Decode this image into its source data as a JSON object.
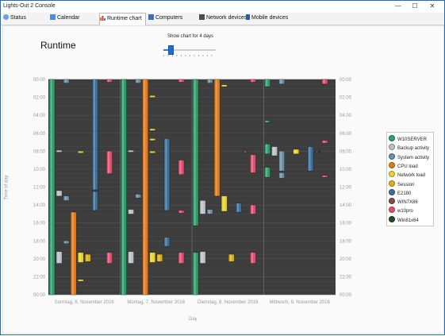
{
  "window": {
    "title": "Lights-Out 2 Console"
  },
  "controls": {
    "minimize": "—",
    "maximize": "☐",
    "close": "✕"
  },
  "tabs": [
    {
      "label": "Status",
      "icon": "status-icon",
      "color": "#6aa2d8"
    },
    {
      "label": "Calendar",
      "icon": "calendar-icon",
      "color": "#4a8fd1"
    },
    {
      "label": "Runtime chart",
      "icon": "chart-icon",
      "color": "#d9822b",
      "active": true
    },
    {
      "label": "Computers",
      "icon": "computers-icon",
      "color": "#3e6fb4"
    },
    {
      "label": "Network devices",
      "icon": "network-icon",
      "color": "#4c4c4c"
    },
    {
      "label": "Mobile devices",
      "icon": "mobile-icon",
      "color": "#2f5e9e"
    }
  ],
  "page": {
    "title": "Runtime"
  },
  "slider": {
    "label": "Show chart for 4 days",
    "value": 4,
    "max": 28
  },
  "chart_data": {
    "type": "gantt",
    "ylabel": "Time of day",
    "xlabel": "Day",
    "y_ticks": [
      "00:00",
      "02:00",
      "04:00",
      "06:00",
      "08:00",
      "10:00",
      "12:00",
      "14:00",
      "16:00",
      "18:00",
      "20:00",
      "22:00",
      "00:00"
    ],
    "days": [
      "Sonntag, 6. November 2016",
      "Montag, 7. November 2016",
      "Dienstag, 8. November 2016",
      "Mittwoch, 9. November 2016"
    ],
    "series": [
      {
        "name": "W10SERVER",
        "color": "#2e9e6a"
      },
      {
        "name": "Backup activity",
        "color": "#b9c2c8"
      },
      {
        "name": "System activity",
        "color": "#6c8fa6"
      },
      {
        "name": "CPU load",
        "color": "#e07b1e"
      },
      {
        "name": "Network load",
        "color": "#e8d42c"
      },
      {
        "name": "Session",
        "color": "#d8b11a"
      },
      {
        "name": "E2180",
        "color": "#3d6f98"
      },
      {
        "name": "WIN7X86",
        "color": "#8c4b4b"
      },
      {
        "name": "w10pro",
        "color": "#e0506e"
      },
      {
        "name": "Win81x64",
        "color": "#1f4d2a"
      }
    ],
    "bars": [
      {
        "series": "W10SERVER",
        "day": 0,
        "col": 0,
        "start": 0.0,
        "end": 24.0
      },
      {
        "series": "W10SERVER",
        "day": 1,
        "col": 0,
        "start": 0.0,
        "end": 24.0
      },
      {
        "series": "W10SERVER",
        "day": 2,
        "col": 0,
        "start": 0.0,
        "end": 16.3
      },
      {
        "series": "W10SERVER",
        "day": 2,
        "col": 0,
        "start": 19.3,
        "end": 24.0
      },
      {
        "series": "W10SERVER",
        "day": 3,
        "col": 0,
        "start": 0.0,
        "end": 0.8
      },
      {
        "series": "W10SERVER",
        "day": 3,
        "col": 0,
        "start": 4.6,
        "end": 4.8
      },
      {
        "series": "W10SERVER",
        "day": 3,
        "col": 0,
        "start": 7.2,
        "end": 8.3
      },
      {
        "series": "W10SERVER",
        "day": 3,
        "col": 0,
        "start": 9.8,
        "end": 10.9
      },
      {
        "series": "Backup activity",
        "day": 0,
        "col": 1,
        "start": 7.9,
        "end": 8.1
      },
      {
        "series": "Backup activity",
        "day": 0,
        "col": 1,
        "start": 12.4,
        "end": 13.0
      },
      {
        "series": "Backup activity",
        "day": 0,
        "col": 1,
        "start": 19.2,
        "end": 20.5
      },
      {
        "series": "Backup activity",
        "day": 1,
        "col": 1,
        "start": 7.9,
        "end": 8.1
      },
      {
        "series": "Backup activity",
        "day": 1,
        "col": 1,
        "start": 14.5,
        "end": 15.0
      },
      {
        "series": "Backup activity",
        "day": 1,
        "col": 1,
        "start": 19.2,
        "end": 20.5
      },
      {
        "series": "Backup activity",
        "day": 2,
        "col": 1,
        "start": 13.5,
        "end": 15.0
      },
      {
        "series": "Backup activity",
        "day": 2,
        "col": 1,
        "start": 19.2,
        "end": 20.5
      },
      {
        "series": "Backup activity",
        "day": 3,
        "col": 1,
        "start": 7.5,
        "end": 8.5
      },
      {
        "series": "System activity",
        "day": 0,
        "col": 2,
        "start": 0.0,
        "end": 0.4
      },
      {
        "series": "System activity",
        "day": 0,
        "col": 2,
        "start": 13.0,
        "end": 13.5
      },
      {
        "series": "System activity",
        "day": 0,
        "col": 2,
        "start": 18.0,
        "end": 18.3
      },
      {
        "series": "System activity",
        "day": 1,
        "col": 2,
        "start": 0.0,
        "end": 0.4
      },
      {
        "series": "System activity",
        "day": 1,
        "col": 2,
        "start": 12.8,
        "end": 13.2
      },
      {
        "series": "System activity",
        "day": 2,
        "col": 2,
        "start": 0.0,
        "end": 0.4
      },
      {
        "series": "System activity",
        "day": 2,
        "col": 2,
        "start": 14.5,
        "end": 15.0
      },
      {
        "series": "System activity",
        "day": 3,
        "col": 2,
        "start": 0.0,
        "end": 0.5
      },
      {
        "series": "System activity",
        "day": 3,
        "col": 2,
        "start": 8.0,
        "end": 10.2
      },
      {
        "series": "System activity",
        "day": 3,
        "col": 2,
        "start": 10.4,
        "end": 11.0
      },
      {
        "series": "CPU load",
        "day": 0,
        "col": 3,
        "start": 14.8,
        "end": 24.0
      },
      {
        "series": "CPU load",
        "day": 1,
        "col": 3,
        "start": 0.0,
        "end": 24.0
      },
      {
        "series": "CPU load",
        "day": 2,
        "col": 3,
        "start": 0.0,
        "end": 13.0
      },
      {
        "series": "Network load",
        "day": 0,
        "col": 4,
        "start": 8.0,
        "end": 8.2
      },
      {
        "series": "Network load",
        "day": 0,
        "col": 4,
        "start": 19.3,
        "end": 20.4
      },
      {
        "series": "Network load",
        "day": 0,
        "col": 4,
        "start": 22.3,
        "end": 22.5
      },
      {
        "series": "Network load",
        "day": 1,
        "col": 4,
        "start": 1.8,
        "end": 2.0
      },
      {
        "series": "Network load",
        "day": 1,
        "col": 4,
        "start": 5.5,
        "end": 5.7
      },
      {
        "series": "Network load",
        "day": 1,
        "col": 4,
        "start": 6.6,
        "end": 6.8
      },
      {
        "series": "Network load",
        "day": 1,
        "col": 4,
        "start": 8.0,
        "end": 8.2
      },
      {
        "series": "Network load",
        "day": 1,
        "col": 4,
        "start": 19.3,
        "end": 20.4
      },
      {
        "series": "Network load",
        "day": 2,
        "col": 4,
        "start": 0.6,
        "end": 0.8
      },
      {
        "series": "Network load",
        "day": 2,
        "col": 4,
        "start": 13.0,
        "end": 14.7
      },
      {
        "series": "Network load",
        "day": 3,
        "col": 4,
        "start": 7.8,
        "end": 8.3
      },
      {
        "series": "Session",
        "day": 0,
        "col": 5,
        "start": 19.5,
        "end": 20.3
      },
      {
        "series": "Session",
        "day": 1,
        "col": 5,
        "start": 19.5,
        "end": 20.3
      },
      {
        "series": "Session",
        "day": 2,
        "col": 5,
        "start": 19.5,
        "end": 20.3
      },
      {
        "series": "E2180",
        "day": 0,
        "col": 6,
        "start": 0.0,
        "end": 12.3
      },
      {
        "series": "E2180",
        "day": 0,
        "col": 6,
        "start": 12.5,
        "end": 14.6
      },
      {
        "series": "E2180",
        "day": 1,
        "col": 6,
        "start": 6.6,
        "end": 14.6
      },
      {
        "series": "E2180",
        "day": 1,
        "col": 6,
        "start": 17.6,
        "end": 18.6
      },
      {
        "series": "E2180",
        "day": 2,
        "col": 6,
        "start": 13.8,
        "end": 14.8
      },
      {
        "series": "E2180",
        "day": 3,
        "col": 6,
        "start": 7.5,
        "end": 10.2
      },
      {
        "series": "WIN7X86",
        "day": 2,
        "col": 7,
        "start": 8.0,
        "end": 8.1
      },
      {
        "series": "w10pro",
        "day": 0,
        "col": 8,
        "start": 0.0,
        "end": 0.3
      },
      {
        "series": "w10pro",
        "day": 0,
        "col": 8,
        "start": 8.0,
        "end": 10.5
      },
      {
        "series": "w10pro",
        "day": 0,
        "col": 8,
        "start": 19.3,
        "end": 20.5
      },
      {
        "series": "w10pro",
        "day": 1,
        "col": 8,
        "start": 0.0,
        "end": 0.3
      },
      {
        "series": "w10pro",
        "day": 1,
        "col": 8,
        "start": 9.0,
        "end": 10.6
      },
      {
        "series": "w10pro",
        "day": 1,
        "col": 8,
        "start": 14.6,
        "end": 14.9
      },
      {
        "series": "w10pro",
        "day": 1,
        "col": 8,
        "start": 19.3,
        "end": 20.5
      },
      {
        "series": "w10pro",
        "day": 2,
        "col": 8,
        "start": 0.0,
        "end": 0.3
      },
      {
        "series": "w10pro",
        "day": 2,
        "col": 8,
        "start": 8.4,
        "end": 10.4
      },
      {
        "series": "w10pro",
        "day": 2,
        "col": 8,
        "start": 14.0,
        "end": 15.0
      },
      {
        "series": "w10pro",
        "day": 2,
        "col": 8,
        "start": 19.3,
        "end": 20.5
      },
      {
        "series": "w10pro",
        "day": 3,
        "col": 8,
        "start": 0.0,
        "end": 0.5
      },
      {
        "series": "w10pro",
        "day": 3,
        "col": 8,
        "start": 6.8,
        "end": 7.1
      },
      {
        "series": "w10pro",
        "day": 3,
        "col": 8,
        "start": 10.7,
        "end": 10.9
      },
      {
        "series": "Win81x64",
        "day": 3,
        "col": 7,
        "start": 8.0,
        "end": 8.1
      }
    ]
  }
}
